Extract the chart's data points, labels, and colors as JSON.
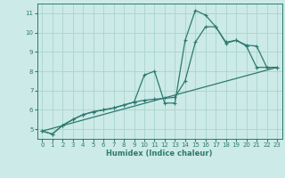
{
  "xlabel": "Humidex (Indice chaleur)",
  "background_color": "#cceae7",
  "grid_color": "#aad4d0",
  "line_color": "#2d7a70",
  "xlim": [
    -0.5,
    23.5
  ],
  "ylim": [
    4.5,
    11.5
  ],
  "xticks": [
    0,
    1,
    2,
    3,
    4,
    5,
    6,
    7,
    8,
    9,
    10,
    11,
    12,
    13,
    14,
    15,
    16,
    17,
    18,
    19,
    20,
    21,
    22,
    23
  ],
  "yticks": [
    5,
    6,
    7,
    8,
    9,
    10,
    11
  ],
  "series1_x": [
    0,
    1,
    2,
    3,
    4,
    5,
    6,
    7,
    8,
    9,
    10,
    11,
    12,
    13,
    14,
    15,
    16,
    17,
    18,
    19,
    20,
    21,
    22,
    23
  ],
  "series1_y": [
    4.9,
    4.75,
    5.2,
    5.5,
    5.75,
    5.9,
    6.0,
    6.1,
    6.25,
    6.4,
    7.8,
    8.0,
    6.35,
    6.35,
    9.6,
    11.15,
    10.9,
    10.3,
    9.45,
    9.6,
    9.3,
    8.2,
    8.2,
    8.2
  ],
  "series2_x": [
    0,
    1,
    2,
    3,
    4,
    5,
    6,
    7,
    8,
    9,
    10,
    11,
    12,
    13,
    14,
    15,
    16,
    17,
    18,
    19,
    20,
    21,
    22,
    23
  ],
  "series2_y": [
    4.9,
    4.75,
    5.2,
    5.5,
    5.75,
    5.9,
    6.0,
    6.1,
    6.25,
    6.4,
    6.5,
    6.55,
    6.6,
    6.65,
    7.5,
    9.5,
    10.3,
    10.3,
    9.5,
    9.6,
    9.35,
    9.3,
    8.2,
    8.2
  ],
  "series3_x": [
    0,
    23
  ],
  "series3_y": [
    4.9,
    8.2
  ],
  "xlabel_fontsize": 6,
  "tick_fontsize": 5,
  "linewidth": 0.9,
  "markersize": 3.0
}
